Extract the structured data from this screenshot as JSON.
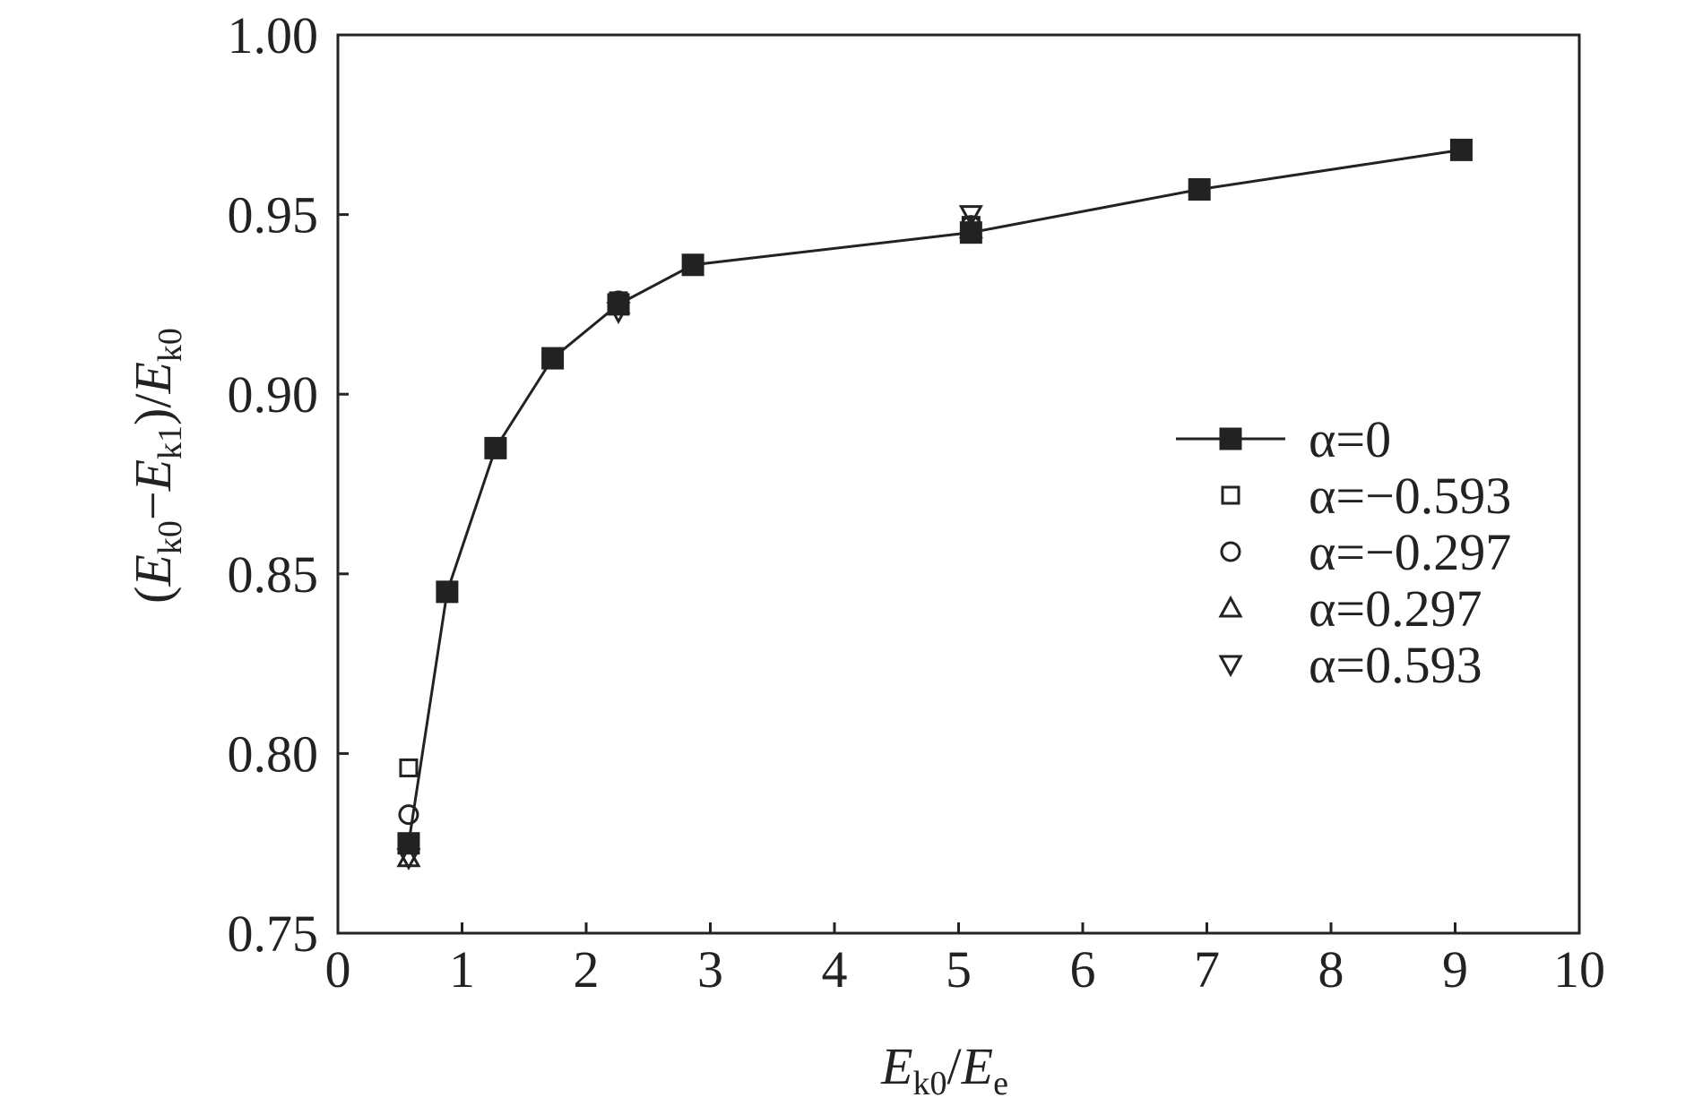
{
  "chart_data": {
    "type": "line",
    "xlabel": [
      "E",
      "k0",
      "/",
      "E",
      "e"
    ],
    "ylabel": [
      "(",
      "E",
      "k0",
      "−",
      "E",
      "k1",
      ")/",
      "E",
      "k0"
    ],
    "xlim": [
      0,
      10
    ],
    "ylim": [
      0.75,
      1.0
    ],
    "xticks": [
      0,
      1,
      2,
      3,
      4,
      5,
      6,
      7,
      8,
      9,
      10
    ],
    "yticks": [
      {
        "value": 0.75,
        "label": "0.75"
      },
      {
        "value": 0.8,
        "label": "0.80"
      },
      {
        "value": 0.85,
        "label": "0.85"
      },
      {
        "value": 0.9,
        "label": "0.90"
      },
      {
        "value": 0.95,
        "label": "0.95"
      },
      {
        "value": 1.0,
        "label": "1.00"
      }
    ],
    "legend": "lower right",
    "grid": false,
    "series": [
      {
        "name": "α=0",
        "color": "#222222",
        "marker": "square",
        "filled": true,
        "line": true,
        "x": [
          0.57,
          0.88,
          1.27,
          1.73,
          2.26,
          2.86,
          5.1,
          6.94,
          9.05
        ],
        "values": [
          0.775,
          0.845,
          0.885,
          0.91,
          0.925,
          0.936,
          0.945,
          0.957,
          0.968
        ]
      },
      {
        "name": "α=−0.593",
        "color": "#222222",
        "marker": "square",
        "filled": false,
        "line": false,
        "x": [
          0.57,
          2.26,
          5.1
        ],
        "values": [
          0.796,
          0.926,
          0.947
        ]
      },
      {
        "name": "α=−0.297",
        "color": "#222222",
        "marker": "circle",
        "filled": false,
        "line": false,
        "x": [
          0.57,
          2.26,
          5.1
        ],
        "values": [
          0.783,
          0.926,
          0.947
        ]
      },
      {
        "name": "α=0.297",
        "color": "#222222",
        "marker": "triangle-up",
        "filled": false,
        "line": false,
        "x": [
          0.57,
          2.26,
          5.1
        ],
        "values": [
          0.771,
          0.925,
          0.946
        ]
      },
      {
        "name": "α=0.593",
        "color": "#222222",
        "marker": "triangle-down",
        "filled": false,
        "line": false,
        "x": [
          0.57,
          2.26,
          5.1
        ],
        "values": [
          0.771,
          0.923,
          0.95
        ]
      }
    ]
  }
}
